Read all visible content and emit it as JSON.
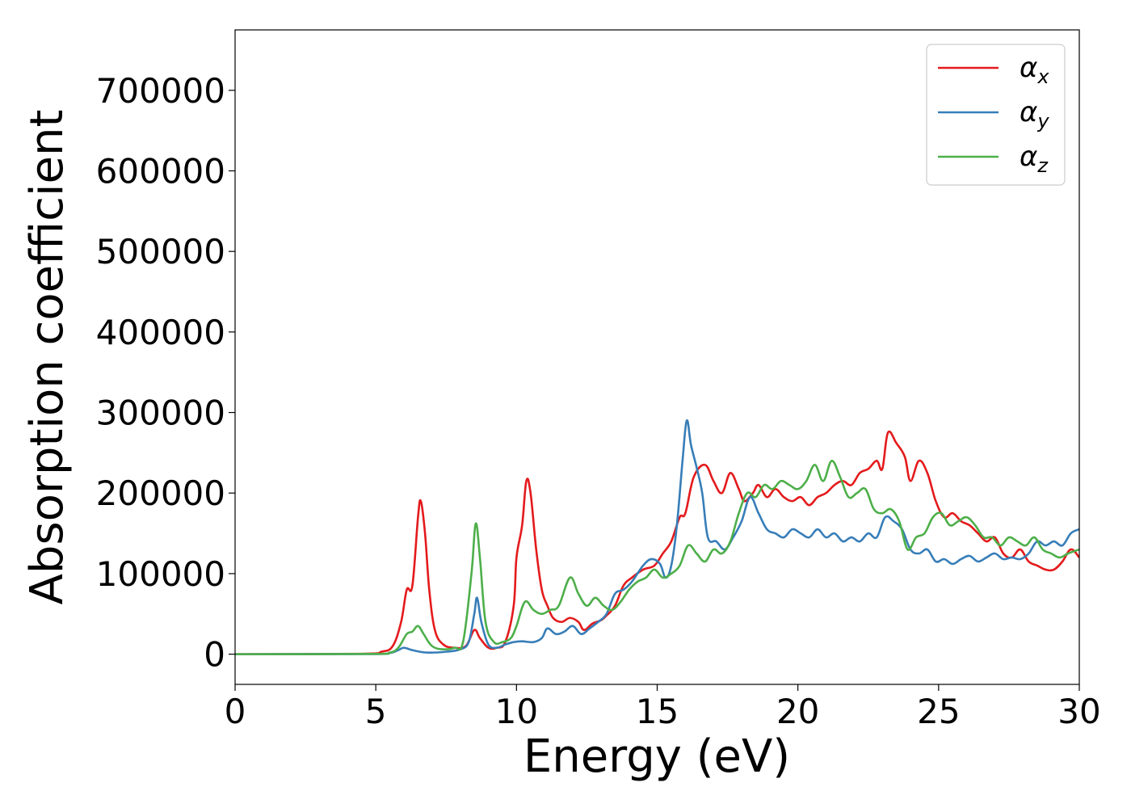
{
  "chart_data": {
    "type": "line",
    "title": "",
    "xlabel": "Energy (eV)",
    "ylabel": "Absorption coefficient",
    "xlim": [
      0,
      30
    ],
    "ylim": [
      -37500,
      775000
    ],
    "xticks": [
      0,
      5,
      10,
      15,
      20,
      25,
      30
    ],
    "xtick_labels": [
      "0",
      "5",
      "10",
      "15",
      "20",
      "25",
      "30"
    ],
    "yticks": [
      0,
      100000,
      200000,
      300000,
      400000,
      500000,
      600000,
      700000
    ],
    "ytick_labels": [
      "0",
      "100000",
      "200000",
      "300000",
      "400000",
      "500000",
      "600000",
      "700000"
    ],
    "grid": false,
    "legend_position": "top-right",
    "series": [
      {
        "name": "α",
        "subscript": "x",
        "color": "#e41a1c",
        "points": [
          [
            0,
            0
          ],
          [
            4.5,
            500
          ],
          [
            5.2,
            3000
          ],
          [
            5.6,
            10000
          ],
          [
            5.9,
            40000
          ],
          [
            6.1,
            80000
          ],
          [
            6.3,
            85000
          ],
          [
            6.5,
            170000
          ],
          [
            6.6,
            190000
          ],
          [
            6.75,
            150000
          ],
          [
            6.9,
            80000
          ],
          [
            7.1,
            30000
          ],
          [
            7.4,
            12000
          ],
          [
            7.8,
            8000
          ],
          [
            8.2,
            10000
          ],
          [
            8.5,
            30000
          ],
          [
            8.7,
            20000
          ],
          [
            9.0,
            8000
          ],
          [
            9.3,
            8000
          ],
          [
            9.6,
            15000
          ],
          [
            9.9,
            60000
          ],
          [
            10.0,
            120000
          ],
          [
            10.2,
            160000
          ],
          [
            10.35,
            215000
          ],
          [
            10.5,
            200000
          ],
          [
            10.7,
            130000
          ],
          [
            10.9,
            80000
          ],
          [
            11.1,
            60000
          ],
          [
            11.3,
            45000
          ],
          [
            11.6,
            40000
          ],
          [
            11.9,
            45000
          ],
          [
            12.2,
            40000
          ],
          [
            12.4,
            30000
          ],
          [
            12.7,
            38000
          ],
          [
            13.0,
            42000
          ],
          [
            13.2,
            48000
          ],
          [
            13.5,
            60000
          ],
          [
            13.8,
            85000
          ],
          [
            14.1,
            95000
          ],
          [
            14.5,
            105000
          ],
          [
            14.9,
            110000
          ],
          [
            15.2,
            125000
          ],
          [
            15.5,
            140000
          ],
          [
            15.8,
            170000
          ],
          [
            16.0,
            175000
          ],
          [
            16.3,
            220000
          ],
          [
            16.7,
            235000
          ],
          [
            17.0,
            215000
          ],
          [
            17.3,
            200000
          ],
          [
            17.6,
            225000
          ],
          [
            17.9,
            205000
          ],
          [
            18.1,
            190000
          ],
          [
            18.4,
            200000
          ],
          [
            18.6,
            210000
          ],
          [
            18.9,
            195000
          ],
          [
            19.2,
            205000
          ],
          [
            19.5,
            195000
          ],
          [
            19.8,
            190000
          ],
          [
            20.1,
            195000
          ],
          [
            20.4,
            185000
          ],
          [
            20.7,
            195000
          ],
          [
            21.0,
            200000
          ],
          [
            21.3,
            210000
          ],
          [
            21.6,
            215000
          ],
          [
            21.9,
            210000
          ],
          [
            22.2,
            225000
          ],
          [
            22.5,
            230000
          ],
          [
            22.8,
            240000
          ],
          [
            23.0,
            230000
          ],
          [
            23.2,
            275000
          ],
          [
            23.5,
            262000
          ],
          [
            23.8,
            245000
          ],
          [
            24.0,
            215000
          ],
          [
            24.3,
            240000
          ],
          [
            24.6,
            225000
          ],
          [
            24.9,
            190000
          ],
          [
            25.2,
            170000
          ],
          [
            25.5,
            175000
          ],
          [
            25.8,
            165000
          ],
          [
            26.1,
            160000
          ],
          [
            26.4,
            150000
          ],
          [
            26.7,
            140000
          ],
          [
            27.0,
            145000
          ],
          [
            27.3,
            125000
          ],
          [
            27.6,
            120000
          ],
          [
            27.9,
            130000
          ],
          [
            28.2,
            115000
          ],
          [
            28.5,
            110000
          ],
          [
            28.8,
            105000
          ],
          [
            29.1,
            105000
          ],
          [
            29.4,
            115000
          ],
          [
            29.7,
            130000
          ],
          [
            30.0,
            120000
          ]
        ]
      },
      {
        "name": "α",
        "subscript": "y",
        "color": "#377eb8",
        "points": [
          [
            0,
            0
          ],
          [
            4.8,
            200
          ],
          [
            5.5,
            1500
          ],
          [
            5.8,
            5000
          ],
          [
            6.0,
            8000
          ],
          [
            6.3,
            5000
          ],
          [
            6.8,
            2000
          ],
          [
            7.5,
            3000
          ],
          [
            8.0,
            6000
          ],
          [
            8.3,
            15000
          ],
          [
            8.5,
            50000
          ],
          [
            8.6,
            70000
          ],
          [
            8.75,
            40000
          ],
          [
            9.0,
            12000
          ],
          [
            9.3,
            8000
          ],
          [
            9.6,
            12000
          ],
          [
            9.9,
            15000
          ],
          [
            10.2,
            16000
          ],
          [
            10.6,
            15000
          ],
          [
            10.9,
            20000
          ],
          [
            11.1,
            32000
          ],
          [
            11.4,
            25000
          ],
          [
            11.7,
            28000
          ],
          [
            12.0,
            35000
          ],
          [
            12.3,
            25000
          ],
          [
            12.6,
            32000
          ],
          [
            12.9,
            40000
          ],
          [
            13.2,
            50000
          ],
          [
            13.5,
            75000
          ],
          [
            13.8,
            80000
          ],
          [
            14.1,
            90000
          ],
          [
            14.5,
            110000
          ],
          [
            14.8,
            118000
          ],
          [
            15.1,
            112000
          ],
          [
            15.3,
            95000
          ],
          [
            15.5,
            110000
          ],
          [
            15.7,
            160000
          ],
          [
            15.9,
            240000
          ],
          [
            16.05,
            290000
          ],
          [
            16.2,
            260000
          ],
          [
            16.4,
            232000
          ],
          [
            16.6,
            200000
          ],
          [
            16.8,
            145000
          ],
          [
            17.1,
            140000
          ],
          [
            17.4,
            130000
          ],
          [
            17.7,
            145000
          ],
          [
            18.0,
            165000
          ],
          [
            18.3,
            195000
          ],
          [
            18.6,
            175000
          ],
          [
            18.9,
            155000
          ],
          [
            19.2,
            150000
          ],
          [
            19.5,
            145000
          ],
          [
            19.8,
            155000
          ],
          [
            20.1,
            150000
          ],
          [
            20.4,
            145000
          ],
          [
            20.7,
            155000
          ],
          [
            21.0,
            145000
          ],
          [
            21.3,
            150000
          ],
          [
            21.6,
            140000
          ],
          [
            21.9,
            145000
          ],
          [
            22.2,
            140000
          ],
          [
            22.5,
            150000
          ],
          [
            22.8,
            145000
          ],
          [
            23.1,
            170000
          ],
          [
            23.4,
            165000
          ],
          [
            23.7,
            155000
          ],
          [
            24.0,
            130000
          ],
          [
            24.3,
            125000
          ],
          [
            24.6,
            130000
          ],
          [
            24.9,
            115000
          ],
          [
            25.2,
            118000
          ],
          [
            25.5,
            112000
          ],
          [
            25.8,
            118000
          ],
          [
            26.1,
            122000
          ],
          [
            26.4,
            115000
          ],
          [
            26.7,
            120000
          ],
          [
            27.0,
            125000
          ],
          [
            27.3,
            118000
          ],
          [
            27.6,
            120000
          ],
          [
            27.9,
            118000
          ],
          [
            28.2,
            125000
          ],
          [
            28.5,
            140000
          ],
          [
            28.8,
            135000
          ],
          [
            29.1,
            140000
          ],
          [
            29.4,
            135000
          ],
          [
            29.7,
            150000
          ],
          [
            30.0,
            155000
          ]
        ]
      },
      {
        "name": "α",
        "subscript": "z",
        "color": "#4daf4a",
        "points": [
          [
            0,
            0
          ],
          [
            4.8,
            300
          ],
          [
            5.5,
            2000
          ],
          [
            5.8,
            8000
          ],
          [
            6.1,
            25000
          ],
          [
            6.3,
            28000
          ],
          [
            6.5,
            35000
          ],
          [
            6.7,
            25000
          ],
          [
            7.0,
            10000
          ],
          [
            7.4,
            6000
          ],
          [
            7.8,
            8000
          ],
          [
            8.1,
            15000
          ],
          [
            8.4,
            100000
          ],
          [
            8.55,
            162000
          ],
          [
            8.7,
            120000
          ],
          [
            8.9,
            40000
          ],
          [
            9.2,
            15000
          ],
          [
            9.5,
            15000
          ],
          [
            9.8,
            20000
          ],
          [
            10.0,
            35000
          ],
          [
            10.3,
            65000
          ],
          [
            10.6,
            55000
          ],
          [
            10.9,
            50000
          ],
          [
            11.2,
            55000
          ],
          [
            11.5,
            60000
          ],
          [
            11.9,
            95000
          ],
          [
            12.2,
            75000
          ],
          [
            12.5,
            60000
          ],
          [
            12.8,
            70000
          ],
          [
            13.1,
            60000
          ],
          [
            13.4,
            55000
          ],
          [
            13.7,
            65000
          ],
          [
            14.0,
            80000
          ],
          [
            14.3,
            90000
          ],
          [
            14.6,
            95000
          ],
          [
            14.9,
            105000
          ],
          [
            15.2,
            95000
          ],
          [
            15.5,
            100000
          ],
          [
            15.8,
            110000
          ],
          [
            16.1,
            135000
          ],
          [
            16.4,
            125000
          ],
          [
            16.7,
            115000
          ],
          [
            17.0,
            130000
          ],
          [
            17.3,
            125000
          ],
          [
            17.6,
            140000
          ],
          [
            17.9,
            175000
          ],
          [
            18.2,
            200000
          ],
          [
            18.5,
            195000
          ],
          [
            18.8,
            210000
          ],
          [
            19.1,
            205000
          ],
          [
            19.4,
            215000
          ],
          [
            19.7,
            210000
          ],
          [
            20.0,
            205000
          ],
          [
            20.3,
            215000
          ],
          [
            20.6,
            235000
          ],
          [
            20.9,
            215000
          ],
          [
            21.2,
            240000
          ],
          [
            21.5,
            220000
          ],
          [
            21.8,
            195000
          ],
          [
            22.1,
            200000
          ],
          [
            22.4,
            205000
          ],
          [
            22.7,
            180000
          ],
          [
            23.0,
            175000
          ],
          [
            23.3,
            180000
          ],
          [
            23.6,
            165000
          ],
          [
            23.9,
            130000
          ],
          [
            24.2,
            145000
          ],
          [
            24.5,
            150000
          ],
          [
            24.8,
            170000
          ],
          [
            25.1,
            175000
          ],
          [
            25.4,
            160000
          ],
          [
            25.7,
            165000
          ],
          [
            26.0,
            170000
          ],
          [
            26.3,
            160000
          ],
          [
            26.6,
            145000
          ],
          [
            26.9,
            145000
          ],
          [
            27.2,
            135000
          ],
          [
            27.5,
            145000
          ],
          [
            27.8,
            140000
          ],
          [
            28.1,
            135000
          ],
          [
            28.4,
            145000
          ],
          [
            28.7,
            130000
          ],
          [
            29.0,
            125000
          ],
          [
            29.3,
            120000
          ],
          [
            29.6,
            125000
          ],
          [
            30.0,
            130000
          ]
        ]
      }
    ]
  }
}
